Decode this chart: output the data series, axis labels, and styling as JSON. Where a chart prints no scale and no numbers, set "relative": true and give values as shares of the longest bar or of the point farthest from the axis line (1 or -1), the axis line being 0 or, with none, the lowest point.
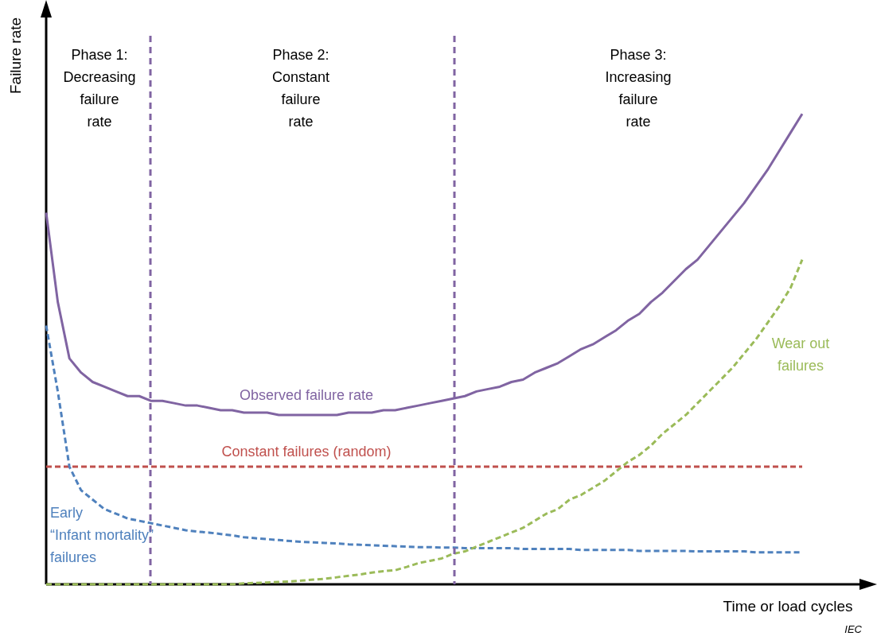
{
  "chart_data": {
    "type": "line",
    "relative": true,
    "xlabel": "Time or load cycles",
    "ylabel": "Failure rate",
    "categories": [
      null,
      null,
      null,
      null,
      null,
      null,
      null,
      null,
      null,
      null,
      null,
      null,
      null,
      null,
      null,
      null,
      null,
      null,
      null,
      null,
      null,
      null,
      null,
      null,
      null,
      null,
      null,
      null,
      null,
      null,
      null,
      null,
      null,
      null,
      null,
      null,
      null,
      null,
      null,
      null,
      null,
      null,
      null,
      null,
      null,
      null,
      null,
      null,
      null,
      null,
      null,
      null,
      null,
      null,
      null,
      null,
      null,
      null,
      null,
      null,
      null,
      null,
      null,
      null,
      null,
      null
    ],
    "series": [
      {
        "name": "Observed failure rate",
        "color": "#8064a2",
        "line_style": "solid",
        "values": [
          0.79,
          0.6,
          0.48,
          0.45,
          0.43,
          0.42,
          0.41,
          0.4,
          0.4,
          0.39,
          0.39,
          0.385,
          0.38,
          0.38,
          0.375,
          0.37,
          0.37,
          0.365,
          0.365,
          0.365,
          0.36,
          0.36,
          0.36,
          0.36,
          0.36,
          0.36,
          0.365,
          0.365,
          0.365,
          0.37,
          0.37,
          0.375,
          0.38,
          0.385,
          0.39,
          0.395,
          0.4,
          0.41,
          0.415,
          0.42,
          0.43,
          0.435,
          0.45,
          0.46,
          0.47,
          0.485,
          0.5,
          0.51,
          0.525,
          0.54,
          0.56,
          0.575,
          0.6,
          0.62,
          0.645,
          0.67,
          0.69,
          0.72,
          0.75,
          0.78,
          0.81,
          0.845,
          0.88,
          0.92,
          0.96,
          1.0
        ]
      },
      {
        "name": "Constant failures (random)",
        "color": "#c0504d",
        "line_style": "dashed",
        "values": [
          0.25,
          0.25,
          0.25,
          0.25,
          0.25,
          0.25,
          0.25,
          0.25,
          0.25,
          0.25,
          0.25,
          0.25,
          0.25,
          0.25,
          0.25,
          0.25,
          0.25,
          0.25,
          0.25,
          0.25,
          0.25,
          0.25,
          0.25,
          0.25,
          0.25,
          0.25,
          0.25,
          0.25,
          0.25,
          0.25,
          0.25,
          0.25,
          0.25,
          0.25,
          0.25,
          0.25,
          0.25,
          0.25,
          0.25,
          0.25,
          0.25,
          0.25,
          0.25,
          0.25,
          0.25,
          0.25,
          0.25,
          0.25,
          0.25,
          0.25,
          0.25,
          0.25,
          0.25,
          0.25,
          0.25,
          0.25,
          0.25,
          0.25,
          0.25,
          0.25,
          0.25,
          0.25,
          0.25,
          0.25,
          0.25,
          0.25
        ]
      },
      {
        "name": "Early\n“Infant mortality”\nfailures",
        "color": "#4f81bd",
        "line_style": "dashed",
        "values": [
          0.55,
          0.41,
          0.25,
          0.2,
          0.18,
          0.16,
          0.15,
          0.14,
          0.135,
          0.13,
          0.125,
          0.12,
          0.115,
          0.112,
          0.11,
          0.107,
          0.104,
          0.1,
          0.098,
          0.096,
          0.094,
          0.092,
          0.09,
          0.089,
          0.088,
          0.087,
          0.085,
          0.084,
          0.083,
          0.082,
          0.081,
          0.08,
          0.079,
          0.079,
          0.078,
          0.078,
          0.077,
          0.077,
          0.077,
          0.077,
          0.077,
          0.075,
          0.075,
          0.075,
          0.075,
          0.075,
          0.073,
          0.073,
          0.073,
          0.073,
          0.073,
          0.071,
          0.071,
          0.071,
          0.071,
          0.071,
          0.07,
          0.07,
          0.07,
          0.07,
          0.07,
          0.068,
          0.068,
          0.068,
          0.068,
          0.068
        ]
      },
      {
        "name": "Wear out\nfailures",
        "color": "#9bbb59",
        "line_style": "dashed",
        "values": [
          0,
          0,
          0,
          0,
          0,
          0,
          0,
          0,
          0,
          0,
          0,
          0,
          0,
          0,
          0,
          0,
          0,
          0.002,
          0.003,
          0.004,
          0.005,
          0.006,
          0.008,
          0.01,
          0.012,
          0.015,
          0.018,
          0.021,
          0.025,
          0.028,
          0.03,
          0.037,
          0.045,
          0.05,
          0.055,
          0.065,
          0.07,
          0.08,
          0.09,
          0.1,
          0.11,
          0.12,
          0.135,
          0.15,
          0.16,
          0.18,
          0.19,
          0.205,
          0.22,
          0.24,
          0.26,
          0.275,
          0.295,
          0.32,
          0.34,
          0.36,
          0.385,
          0.41,
          0.435,
          0.46,
          0.49,
          0.52,
          0.555,
          0.59,
          0.63,
          0.69
        ]
      }
    ],
    "annotations": [
      "Phase 1:\nDecreasing\nfailure\nrate",
      "Phase 2:\nConstant\nfailure\nrate",
      "Phase 3:\nIncreasing\nfailure\nrate",
      "IEC"
    ]
  }
}
